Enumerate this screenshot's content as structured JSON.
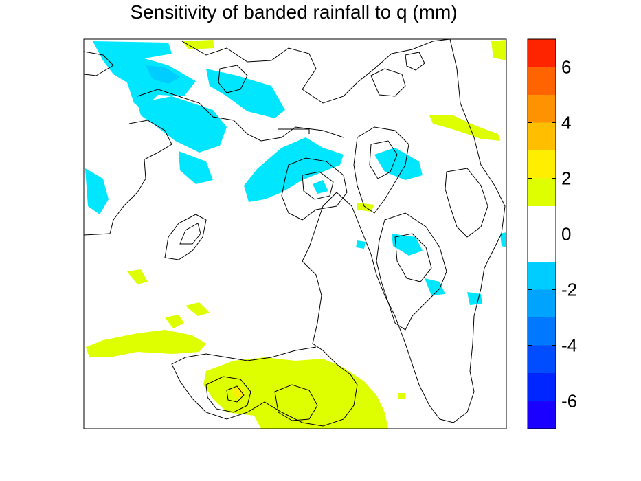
{
  "chart_data": {
    "type": "heatmap",
    "title": "Sensitivity of banded rainfall to q (mm)",
    "xlabel": "",
    "ylabel": "",
    "colorbar": {
      "range": [
        -7,
        7
      ],
      "ticks": [
        -6,
        -4,
        -2,
        0,
        2,
        4,
        6
      ],
      "tick_labels": [
        "-6",
        "-4",
        "-2",
        "0",
        "2",
        "4",
        "6"
      ],
      "levels": [
        {
          "min": -7,
          "max": -6,
          "color": "#1a00ff"
        },
        {
          "min": -6,
          "max": -5,
          "color": "#0026ff"
        },
        {
          "min": -5,
          "max": -4,
          "color": "#004cff"
        },
        {
          "min": -4,
          "max": -3,
          "color": "#0078ff"
        },
        {
          "min": -3,
          "max": -2,
          "color": "#00a4ff"
        },
        {
          "min": -2,
          "max": -1,
          "color": "#00cdff"
        },
        {
          "min": -1,
          "max": 1,
          "color": "#ffffff"
        },
        {
          "min": 1,
          "max": 2,
          "color": "#ddff00"
        },
        {
          "min": 2,
          "max": 3,
          "color": "#ffee00"
        },
        {
          "min": 3,
          "max": 4,
          "color": "#ffbf00"
        },
        {
          "min": 4,
          "max": 5,
          "color": "#ff9200"
        },
        {
          "min": 5,
          "max": 6,
          "color": "#ff6400"
        },
        {
          "min": 6,
          "max": 7,
          "color": "#ff2400"
        }
      ]
    },
    "regions": [
      {
        "sign": "negative",
        "color": "#00e6ff",
        "area": "upper-left"
      },
      {
        "sign": "negative",
        "color": "#00e6ff",
        "area": "upper-center"
      },
      {
        "sign": "negative",
        "color": "#00e6ff",
        "area": "center-right"
      },
      {
        "sign": "positive",
        "color": "#ddff00",
        "area": "lower-center"
      },
      {
        "sign": "positive",
        "color": "#ddff00",
        "area": "lower-left"
      },
      {
        "sign": "positive",
        "color": "#ddff00",
        "area": "upper-right-edge"
      }
    ],
    "grid": false,
    "legend": "colorbar-right"
  }
}
